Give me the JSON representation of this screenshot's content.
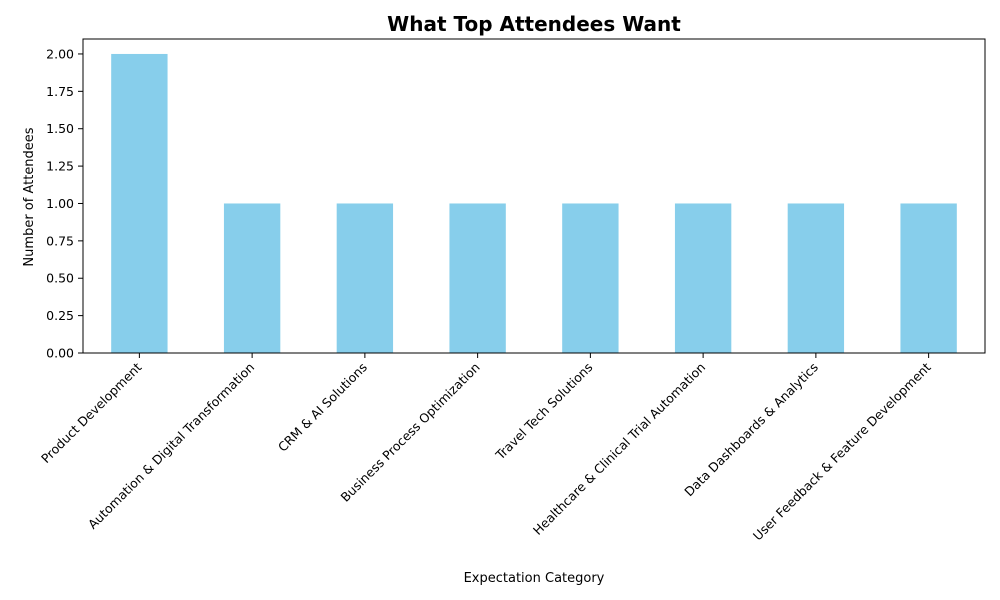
{
  "chart_data": {
    "type": "bar",
    "title": "What Top Attendees Want",
    "xlabel": "Expectation Category",
    "ylabel": "Number of Attendees",
    "categories": [
      "Product Development",
      "Automation & Digital Transformation",
      "CRM & AI Solutions",
      "Business Process Optimization",
      "Travel Tech Solutions",
      "Healthcare & Clinical Trial Automation",
      "Data Dashboards & Analytics",
      "User Feedback & Feature Development"
    ],
    "values": [
      2,
      1,
      1,
      1,
      1,
      1,
      1,
      1
    ],
    "ylim": [
      0,
      2.1
    ],
    "yticks": [
      0.0,
      0.25,
      0.5,
      0.75,
      1.0,
      1.25,
      1.5,
      1.75,
      2.0
    ],
    "ytick_labels": [
      "0.00",
      "0.25",
      "0.50",
      "0.75",
      "1.00",
      "1.25",
      "1.50",
      "1.75",
      "2.00"
    ],
    "bar_color": "#87CEEB",
    "grid": false,
    "legend": "none"
  }
}
